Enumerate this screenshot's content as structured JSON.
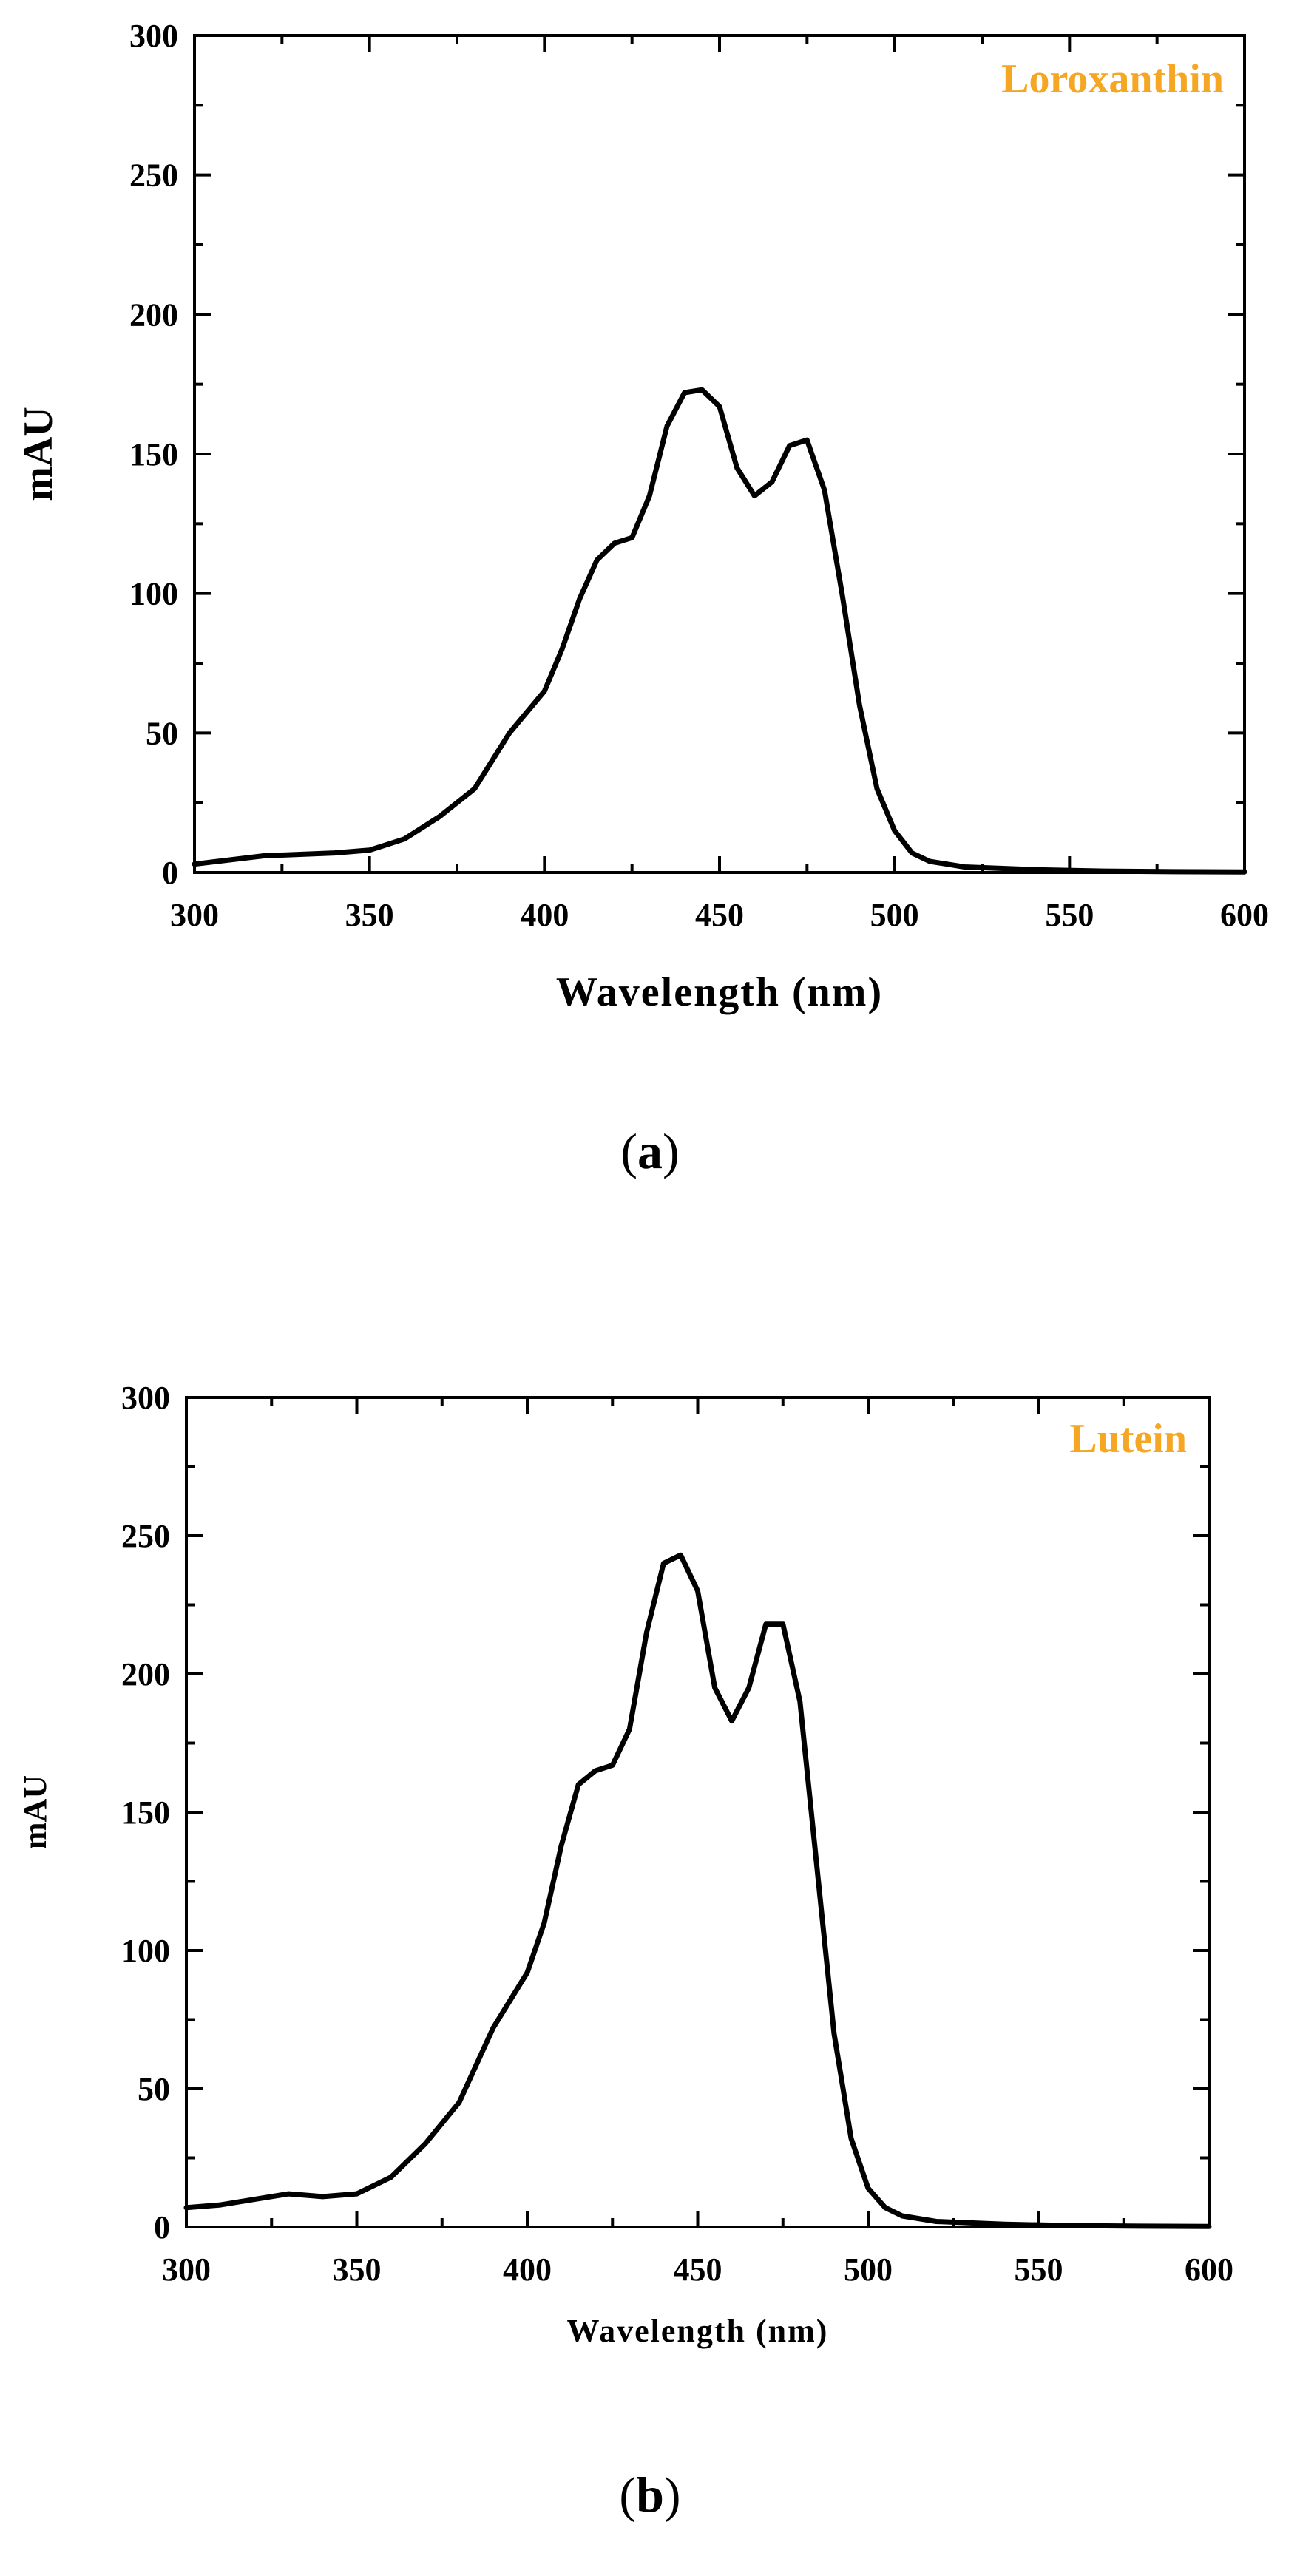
{
  "chart_data": [
    {
      "type": "line",
      "panel_label": "(a)",
      "panel_letter": "a",
      "xlabel": "Wavelength (nm)",
      "ylabel": "mAU",
      "xlim": [
        300,
        600
      ],
      "ylim": [
        0,
        300
      ],
      "x_ticks": [
        300,
        350,
        400,
        450,
        500,
        550,
        600
      ],
      "y_ticks": [
        0,
        50,
        100,
        150,
        200,
        250,
        300
      ],
      "grid": false,
      "legend_position": "top-right",
      "series": [
        {
          "name": "Loroxanthin",
          "color": "#f5a623",
          "x": [
            300,
            320,
            340,
            350,
            360,
            370,
            380,
            390,
            400,
            405,
            410,
            415,
            420,
            425,
            430,
            435,
            440,
            445,
            450,
            455,
            460,
            465,
            470,
            475,
            480,
            485,
            490,
            495,
            500,
            505,
            510,
            520,
            540,
            560,
            580,
            600
          ],
          "y": [
            3,
            6,
            7,
            8,
            12,
            20,
            30,
            50,
            65,
            80,
            98,
            112,
            118,
            120,
            135,
            160,
            172,
            173,
            167,
            145,
            135,
            140,
            153,
            155,
            137,
            100,
            60,
            30,
            15,
            7,
            4,
            2,
            1,
            0.5,
            0.3,
            0.2
          ]
        }
      ]
    },
    {
      "type": "line",
      "panel_label": "(b)",
      "panel_letter": "b",
      "xlabel": "Wavelength (nm)",
      "ylabel": "mAU",
      "xlim": [
        300,
        600
      ],
      "ylim": [
        0,
        300
      ],
      "x_ticks": [
        300,
        350,
        400,
        450,
        500,
        550,
        600
      ],
      "y_ticks": [
        0,
        50,
        100,
        150,
        200,
        250,
        300
      ],
      "grid": false,
      "legend_position": "top-right",
      "series": [
        {
          "name": "Lutein",
          "color": "#f5a623",
          "x": [
            300,
            310,
            320,
            330,
            340,
            350,
            360,
            370,
            380,
            390,
            400,
            405,
            410,
            415,
            420,
            425,
            430,
            435,
            440,
            445,
            450,
            455,
            460,
            465,
            470,
            475,
            480,
            485,
            490,
            495,
            500,
            505,
            510,
            520,
            540,
            560,
            580,
            600
          ],
          "y": [
            7,
            8,
            10,
            12,
            11,
            12,
            18,
            30,
            45,
            72,
            92,
            110,
            138,
            160,
            165,
            167,
            180,
            215,
            240,
            243,
            230,
            195,
            183,
            195,
            218,
            218,
            190,
            130,
            70,
            32,
            14,
            7,
            4,
            2,
            1,
            0.5,
            0.3,
            0.2
          ]
        }
      ]
    }
  ]
}
